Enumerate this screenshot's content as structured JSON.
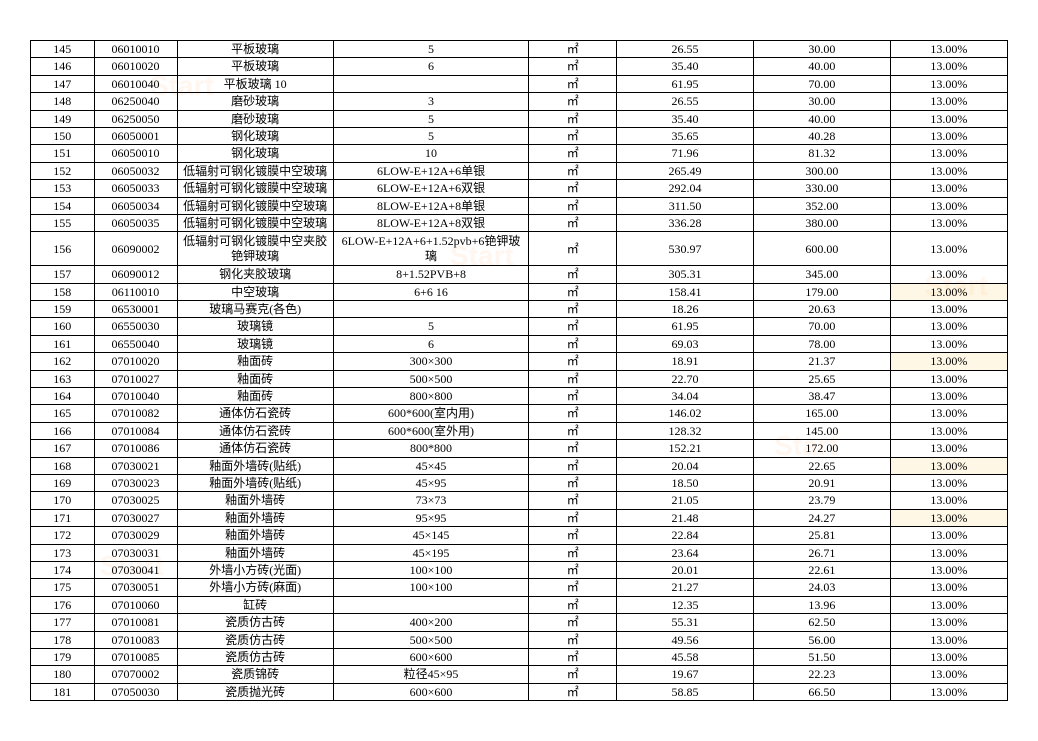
{
  "table": {
    "font_size": 12,
    "border_color": "#000000",
    "background": "#ffffff",
    "columns": [
      "index",
      "code",
      "name",
      "spec",
      "unit",
      "price1",
      "price2",
      "percent"
    ],
    "column_widths_pct": [
      6.5,
      8.5,
      16,
      20,
      9,
      14,
      14,
      12
    ],
    "unit_glyph": "㎡",
    "rows": [
      {
        "idx": "145",
        "code": "06010010",
        "name": "平板玻璃",
        "spec": "5",
        "unit": "㎡",
        "p1": "26.55",
        "p2": "30.00",
        "pct": "13.00%"
      },
      {
        "idx": "146",
        "code": "06010020",
        "name": "平板玻璃",
        "spec": "6",
        "unit": "㎡",
        "p1": "35.40",
        "p2": "40.00",
        "pct": "13.00%"
      },
      {
        "idx": "147",
        "code": "06010040",
        "name": "平板玻璃 10",
        "spec": "",
        "unit": "㎡",
        "p1": "61.95",
        "p2": "70.00",
        "pct": "13.00%"
      },
      {
        "idx": "148",
        "code": "06250040",
        "name": "磨砂玻璃",
        "spec": "3",
        "unit": "㎡",
        "p1": "26.55",
        "p2": "30.00",
        "pct": "13.00%"
      },
      {
        "idx": "149",
        "code": "06250050",
        "name": "磨砂玻璃",
        "spec": "5",
        "unit": "㎡",
        "p1": "35.40",
        "p2": "40.00",
        "pct": "13.00%"
      },
      {
        "idx": "150",
        "code": "06050001",
        "name": "钢化玻璃",
        "spec": "5",
        "unit": "㎡",
        "p1": "35.65",
        "p2": "40.28",
        "pct": "13.00%"
      },
      {
        "idx": "151",
        "code": "06050010",
        "name": "钢化玻璃",
        "spec": "10",
        "unit": "㎡",
        "p1": "71.96",
        "p2": "81.32",
        "pct": "13.00%"
      },
      {
        "idx": "152",
        "code": "06050032",
        "name": "低辐射可钢化镀膜中空玻璃",
        "spec": "6LOW-E+12A+6单银",
        "unit": "㎡",
        "p1": "265.49",
        "p2": "300.00",
        "pct": "13.00%"
      },
      {
        "idx": "153",
        "code": "06050033",
        "name": "低辐射可钢化镀膜中空玻璃",
        "spec": "6LOW-E+12A+6双银",
        "unit": "㎡",
        "p1": "292.04",
        "p2": "330.00",
        "pct": "13.00%"
      },
      {
        "idx": "154",
        "code": "06050034",
        "name": "低辐射可钢化镀膜中空玻璃",
        "spec": "8LOW-E+12A+8单银",
        "unit": "㎡",
        "p1": "311.50",
        "p2": "352.00",
        "pct": "13.00%"
      },
      {
        "idx": "155",
        "code": "06050035",
        "name": "低辐射可钢化镀膜中空玻璃",
        "spec": "8LOW-E+12A+8双银",
        "unit": "㎡",
        "p1": "336.28",
        "p2": "380.00",
        "pct": "13.00%"
      },
      {
        "idx": "156",
        "code": "06090002",
        "name": "低辐射可钢化镀膜中空夹胶铯钾玻璃",
        "spec": "6LOW-E+12A+6+1.52pvb+6铯钾玻璃",
        "unit": "㎡",
        "p1": "530.97",
        "p2": "600.00",
        "pct": "13.00%",
        "multiline": true
      },
      {
        "idx": "157",
        "code": "06090012",
        "name": "钢化夹胶玻璃",
        "spec": "8+1.52PVB+8",
        "unit": "㎡",
        "p1": "305.31",
        "p2": "345.00",
        "pct": "13.00%"
      },
      {
        "idx": "158",
        "code": "06110010",
        "name": "中空玻璃",
        "spec": "6+6 16",
        "unit": "㎡",
        "p1": "158.41",
        "p2": "179.00",
        "pct": "13.00%",
        "hl": true
      },
      {
        "idx": "159",
        "code": "06530001",
        "name": "玻璃马赛克(各色)",
        "spec": "",
        "unit": "㎡",
        "p1": "18.26",
        "p2": "20.63",
        "pct": "13.00%"
      },
      {
        "idx": "160",
        "code": "06550030",
        "name": "玻璃镜",
        "spec": "5",
        "unit": "㎡",
        "p1": "61.95",
        "p2": "70.00",
        "pct": "13.00%"
      },
      {
        "idx": "161",
        "code": "06550040",
        "name": "玻璃镜",
        "spec": "6",
        "unit": "㎡",
        "p1": "69.03",
        "p2": "78.00",
        "pct": "13.00%"
      },
      {
        "idx": "162",
        "code": "07010020",
        "name": "釉面砖",
        "spec": "300×300",
        "unit": "㎡",
        "p1": "18.91",
        "p2": "21.37",
        "pct": "13.00%",
        "hl": true
      },
      {
        "idx": "163",
        "code": "07010027",
        "name": "釉面砖",
        "spec": "500×500",
        "unit": "㎡",
        "p1": "22.70",
        "p2": "25.65",
        "pct": "13.00%"
      },
      {
        "idx": "164",
        "code": "07010040",
        "name": "釉面砖",
        "spec": "800×800",
        "unit": "㎡",
        "p1": "34.04",
        "p2": "38.47",
        "pct": "13.00%"
      },
      {
        "idx": "165",
        "code": "07010082",
        "name": "通体仿石瓷砖",
        "spec": "600*600(室内用)",
        "unit": "㎡",
        "p1": "146.02",
        "p2": "165.00",
        "pct": "13.00%"
      },
      {
        "idx": "166",
        "code": "07010084",
        "name": "通体仿石瓷砖",
        "spec": "600*600(室外用)",
        "unit": "㎡",
        "p1": "128.32",
        "p2": "145.00",
        "pct": "13.00%"
      },
      {
        "idx": "167",
        "code": "07010086",
        "name": "通体仿石瓷砖",
        "spec": "800*800",
        "unit": "㎡",
        "p1": "152.21",
        "p2": "172.00",
        "pct": "13.00%"
      },
      {
        "idx": "168",
        "code": "07030021",
        "name": "釉面外墙砖(贴纸)",
        "spec": "45×45",
        "unit": "㎡",
        "p1": "20.04",
        "p2": "22.65",
        "pct": "13.00%",
        "hl": true
      },
      {
        "idx": "169",
        "code": "07030023",
        "name": "釉面外墙砖(贴纸)",
        "spec": "45×95",
        "unit": "㎡",
        "p1": "18.50",
        "p2": "20.91",
        "pct": "13.00%"
      },
      {
        "idx": "170",
        "code": "07030025",
        "name": "釉面外墙砖",
        "spec": "73×73",
        "unit": "㎡",
        "p1": "21.05",
        "p2": "23.79",
        "pct": "13.00%"
      },
      {
        "idx": "171",
        "code": "07030027",
        "name": "釉面外墙砖",
        "spec": "95×95",
        "unit": "㎡",
        "p1": "21.48",
        "p2": "24.27",
        "pct": "13.00%",
        "hl": true
      },
      {
        "idx": "172",
        "code": "07030029",
        "name": "釉面外墙砖",
        "spec": "45×145",
        "unit": "㎡",
        "p1": "22.84",
        "p2": "25.81",
        "pct": "13.00%"
      },
      {
        "idx": "173",
        "code": "07030031",
        "name": "釉面外墙砖",
        "spec": "45×195",
        "unit": "㎡",
        "p1": "23.64",
        "p2": "26.71",
        "pct": "13.00%"
      },
      {
        "idx": "174",
        "code": "07030041",
        "name": "外墙小方砖(光面)",
        "spec": "100×100",
        "unit": "㎡",
        "p1": "20.01",
        "p2": "22.61",
        "pct": "13.00%"
      },
      {
        "idx": "175",
        "code": "07030051",
        "name": "外墙小方砖(麻面)",
        "spec": "100×100",
        "unit": "㎡",
        "p1": "21.27",
        "p2": "24.03",
        "pct": "13.00%"
      },
      {
        "idx": "176",
        "code": "07010060",
        "name": "缸砖",
        "spec": "",
        "unit": "㎡",
        "p1": "12.35",
        "p2": "13.96",
        "pct": "13.00%"
      },
      {
        "idx": "177",
        "code": "07010081",
        "name": "瓷质仿古砖",
        "spec": "400×200",
        "unit": "㎡",
        "p1": "55.31",
        "p2": "62.50",
        "pct": "13.00%"
      },
      {
        "idx": "178",
        "code": "07010083",
        "name": "瓷质仿古砖",
        "spec": "500×500",
        "unit": "㎡",
        "p1": "49.56",
        "p2": "56.00",
        "pct": "13.00%"
      },
      {
        "idx": "179",
        "code": "07010085",
        "name": "瓷质仿古砖",
        "spec": "600×600",
        "unit": "㎡",
        "p1": "45.58",
        "p2": "51.50",
        "pct": "13.00%"
      },
      {
        "idx": "180",
        "code": "07070002",
        "name": "瓷质锦砖",
        "spec": "粒径45×95",
        "unit": "㎡",
        "p1": "19.67",
        "p2": "22.23",
        "pct": "13.00%"
      },
      {
        "idx": "181",
        "code": "07050030",
        "name": "瓷质抛光砖",
        "spec": "600×600",
        "unit": "㎡",
        "p1": "58.85",
        "p2": "66.50",
        "pct": "13.00%"
      }
    ]
  }
}
